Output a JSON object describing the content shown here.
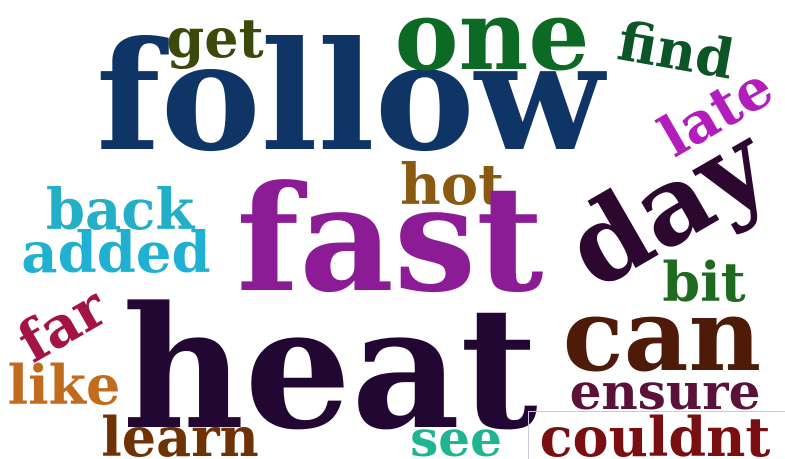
{
  "words": {
    "follow": {
      "text": "follow",
      "color": "#0f3567"
    },
    "one": {
      "text": "one",
      "color": "#0d6a24"
    },
    "get": {
      "text": "get",
      "color": "#3b4a0a"
    },
    "find": {
      "text": "find",
      "color": "#0b5526"
    },
    "late": {
      "text": "late",
      "color": "#b31dbb"
    },
    "day": {
      "text": "day",
      "color": "#2c0830"
    },
    "hot": {
      "text": "hot",
      "color": "#8a5a12"
    },
    "back": {
      "text": "back",
      "color": "#23afc5"
    },
    "added": {
      "text": "added",
      "color": "#20b0d2"
    },
    "fast": {
      "text": "fast",
      "color": "#8c1b96"
    },
    "bit": {
      "text": "bit",
      "color": "#1f6a1f"
    },
    "far": {
      "text": "far",
      "color": "#a31343"
    },
    "heat": {
      "text": "heat",
      "color": "#230733"
    },
    "can": {
      "text": "can",
      "color": "#4d1b08"
    },
    "like": {
      "text": "like",
      "color": "#c16b1e"
    },
    "ensure": {
      "text": "ensure",
      "color": "#5a1238"
    },
    "learn": {
      "text": "learn",
      "color": "#6e3205"
    },
    "see": {
      "text": "see",
      "color": "#1fb592"
    },
    "couldnt": {
      "text": "couldnt",
      "color": "#790f11"
    }
  }
}
